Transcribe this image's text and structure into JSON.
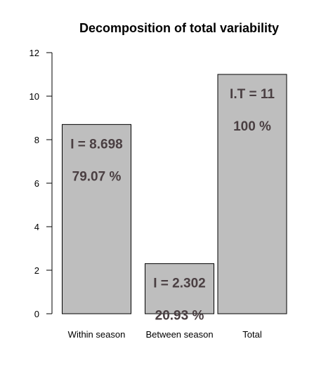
{
  "chart_data": {
    "type": "bar",
    "title": "Decomposition of total variability",
    "xlabel": "",
    "ylabel": "",
    "categories": [
      "Within season",
      "Between season",
      "Total"
    ],
    "values": [
      8.698,
      2.302,
      11
    ],
    "ylim": [
      0,
      12
    ],
    "yticks": [
      "0",
      "2",
      "4",
      "6",
      "8",
      "10",
      "12"
    ],
    "bar_labels": [
      [
        "I = 8.698",
        "79.07 %"
      ],
      [
        "I = 2.302",
        "20.93 %"
      ],
      [
        "I.T = 11",
        "100 %"
      ]
    ],
    "grid": false,
    "legend": "none",
    "colors": {
      "bar_fill": "#bebebe",
      "bar_stroke": "#000000",
      "label_text": "#4a3f42"
    }
  }
}
